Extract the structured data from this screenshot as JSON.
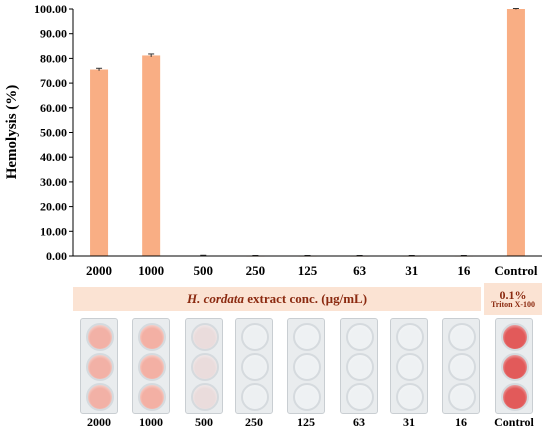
{
  "chart_data": {
    "type": "bar",
    "ylabel": "Hemolysis (%)",
    "ylim": [
      0,
      100
    ],
    "yticks": [
      "0.00",
      "10.00",
      "20.00",
      "30.00",
      "40.00",
      "50.00",
      "60.00",
      "70.00",
      "80.00",
      "90.00",
      "100.00"
    ],
    "categories": [
      "2000",
      "1000",
      "500",
      "250",
      "125",
      "63",
      "31",
      "16",
      "Control"
    ],
    "values": [
      75.5,
      81.2,
      0.2,
      0.1,
      0.1,
      0.1,
      0.1,
      0.1,
      100.0
    ],
    "errors": [
      0.5,
      0.6,
      0.1,
      0.1,
      0.1,
      0.1,
      0.1,
      0.1,
      0.2
    ],
    "bar_color": "#f9ae84",
    "grid": false
  },
  "xgroup": {
    "extract_italic": "H. cordata",
    "extract_rest": " extract conc. (µg/mL)",
    "control_pct": "0.1%",
    "control_sub": "Triton X-100"
  },
  "wells": {
    "labels": [
      "2000",
      "1000",
      "500",
      "250",
      "125",
      "63",
      "31",
      "16",
      "Control"
    ],
    "tint_colors": [
      "#f2b1a6",
      "#f3b0a4",
      "#eadcdc",
      "#edf0f2",
      "#eef1f3",
      "#eef1f3",
      "#eef1f3",
      "#eef1f3",
      "#e25a5a"
    ]
  }
}
